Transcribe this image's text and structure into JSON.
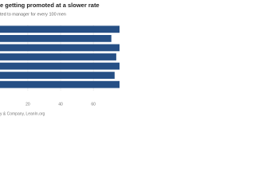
{
  "chart_data": {
    "type": "bar",
    "orientation": "horizontal",
    "title": "e getting promoted at a slower rate",
    "subtitle": "ted to manager for every 100 men",
    "source": "y & Company, LeanIn.org",
    "categories": [
      null,
      null,
      null,
      null,
      null,
      null,
      null
    ],
    "values": [
      76,
      71,
      76,
      74,
      76,
      73,
      76
    ],
    "color": "#264f85",
    "xlim": [
      3,
      76
    ],
    "xticks": [
      20,
      40,
      60
    ],
    "grid": true
  }
}
